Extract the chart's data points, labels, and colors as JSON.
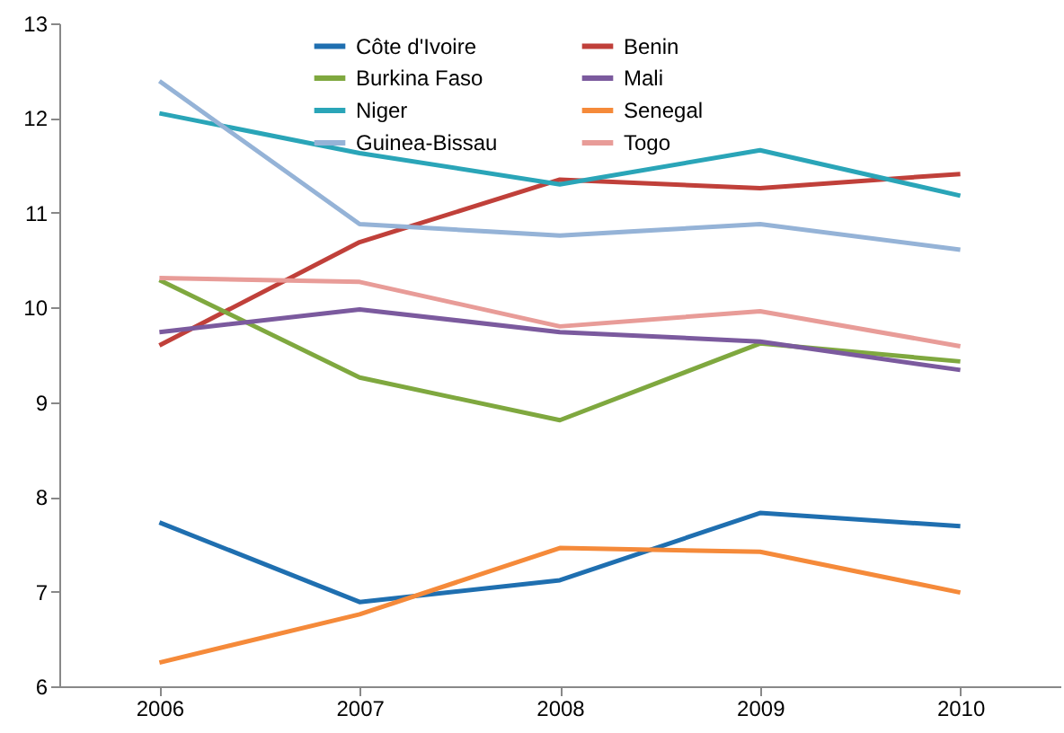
{
  "chart_data": {
    "type": "line",
    "categories": [
      "2006",
      "2007",
      "2008",
      "2009",
      "2010"
    ],
    "ylim": [
      6,
      13
    ],
    "yticks": [
      6,
      7,
      8,
      9,
      10,
      11,
      12,
      13
    ],
    "grid": false,
    "legend": "top",
    "marker": "none",
    "line_style": "solid",
    "series": [
      {
        "name": "Côte d'Ivoire",
        "color": "#1f6fb0",
        "values": [
          7.73,
          6.89,
          7.12,
          7.83,
          7.69
        ]
      },
      {
        "name": "Benin",
        "color": "#c0403a",
        "values": [
          9.6,
          10.69,
          11.35,
          11.26,
          11.41
        ]
      },
      {
        "name": "Burkina Faso",
        "color": "#7fa83f",
        "values": [
          10.29,
          9.26,
          8.81,
          9.62,
          9.43
        ]
      },
      {
        "name": "Mali",
        "color": "#7b5a9e",
        "values": [
          9.74,
          9.98,
          9.74,
          9.64,
          9.34
        ]
      },
      {
        "name": "Niger",
        "color": "#2aa5b8",
        "values": [
          12.05,
          11.63,
          11.3,
          11.66,
          11.18
        ]
      },
      {
        "name": "Senegal",
        "color": "#f58a3a",
        "values": [
          6.25,
          6.76,
          7.46,
          7.42,
          6.99
        ]
      },
      {
        "name": "Guinea-Bissau",
        "color": "#95b3d7",
        "values": [
          12.39,
          10.88,
          10.76,
          10.88,
          10.61
        ]
      },
      {
        "name": "Togo",
        "color": "#e89c98",
        "values": [
          10.31,
          10.27,
          9.8,
          9.96,
          9.59
        ]
      }
    ]
  }
}
